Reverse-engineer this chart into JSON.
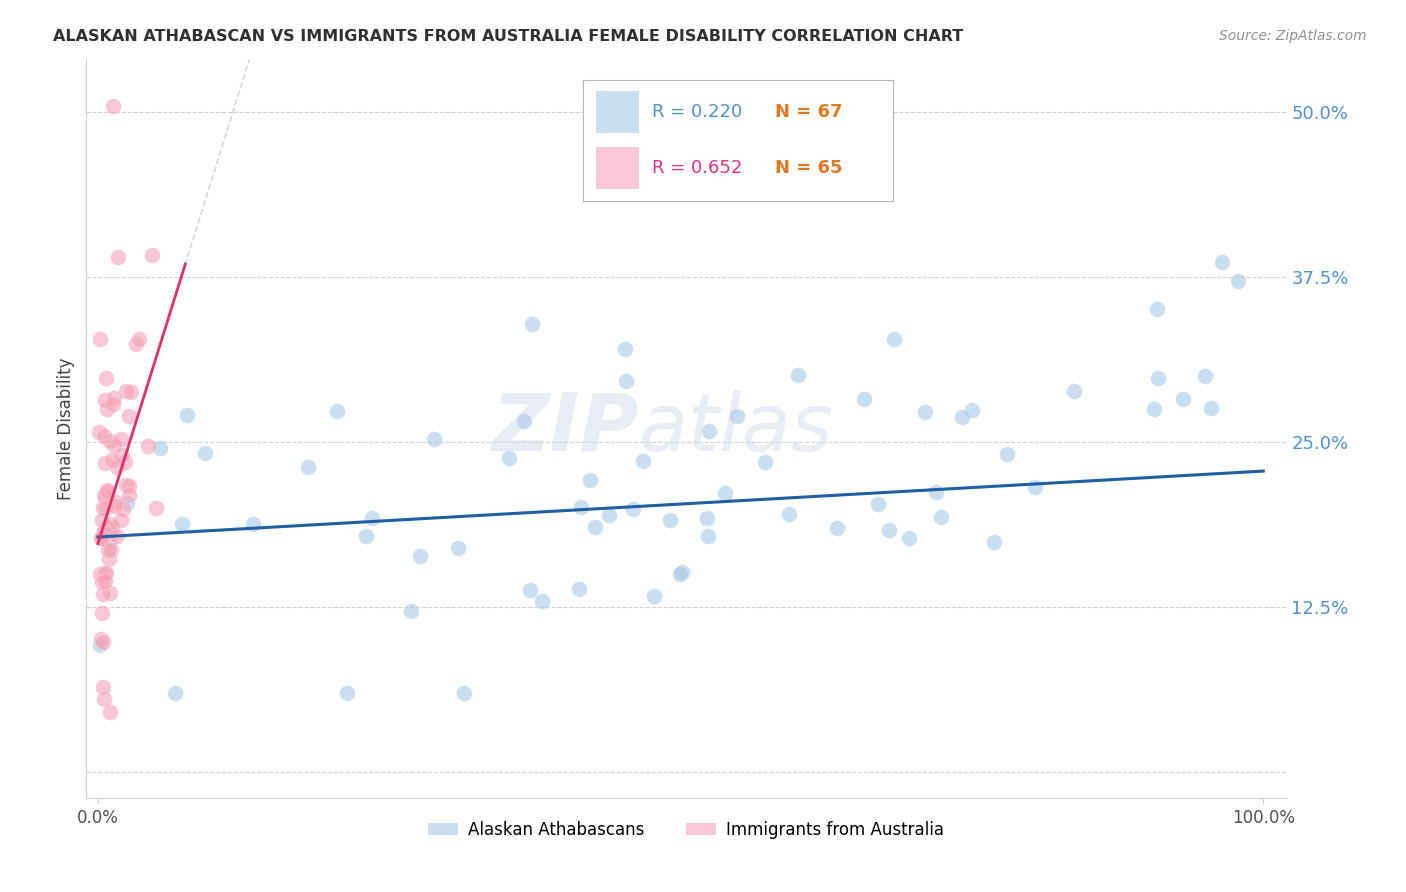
{
  "title": "ALASKAN ATHABASCAN VS IMMIGRANTS FROM AUSTRALIA FEMALE DISABILITY CORRELATION CHART",
  "source": "Source: ZipAtlas.com",
  "ylabel": "Female Disability",
  "yticks": [
    0.0,
    0.125,
    0.25,
    0.375,
    0.5
  ],
  "ytick_labels": [
    "",
    "12.5%",
    "25.0%",
    "37.5%",
    "50.0%"
  ],
  "xtick_labels": [
    "0.0%",
    "100.0%"
  ],
  "xlim": [
    0.0,
    1.0
  ],
  "ylim": [
    0.0,
    0.52
  ],
  "legend_r1": "R = 0.220",
  "legend_n1": "N = 67",
  "legend_r2": "R = 0.652",
  "legend_n2": "N = 65",
  "color_blue": "#a8c8e8",
  "color_pink": "#f4a0b8",
  "line_blue": "#2060a0",
  "line_pink": "#e0306a",
  "line_pink_dash": "#c0a0b0",
  "watermark": "ZIPatlas",
  "background_color": "#ffffff",
  "grid_color": "#d0d0d0",
  "ytick_color": "#5090d0",
  "title_color": "#303030",
  "source_color": "#909090"
}
